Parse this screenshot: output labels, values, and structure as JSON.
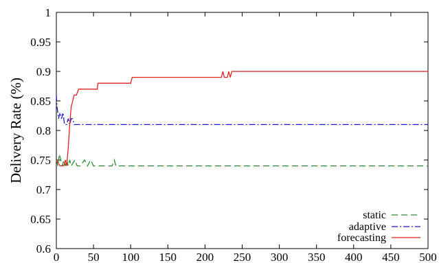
{
  "chart_data": {
    "type": "line",
    "title": "",
    "xlabel": "",
    "ylabel": "Delivery Rate (%)",
    "xlim": [
      0,
      500
    ],
    "ylim": [
      0.6,
      1.0
    ],
    "x_ticks": [
      0,
      50,
      100,
      150,
      200,
      250,
      300,
      350,
      400,
      450,
      500
    ],
    "y_ticks": [
      0.6,
      0.65,
      0.7,
      0.75,
      0.8,
      0.85,
      0.9,
      0.95,
      1.0
    ],
    "y_tick_labels": [
      "0.6",
      "0.65",
      "0.7",
      "0.75",
      "0.8",
      "0.85",
      "0.9",
      "0.95",
      "1"
    ],
    "grid": false,
    "legend_position": "bottom-right",
    "series": [
      {
        "name": "static",
        "color": "#2e8b2e",
        "dash": "dashed",
        "points": [
          [
            0,
            0.75
          ],
          [
            2,
            0.74
          ],
          [
            4,
            0.76
          ],
          [
            6,
            0.75
          ],
          [
            8,
            0.74
          ],
          [
            10,
            0.75
          ],
          [
            12,
            0.74
          ],
          [
            14,
            0.75
          ],
          [
            16,
            0.74
          ],
          [
            18,
            0.75
          ],
          [
            20,
            0.74
          ],
          [
            25,
            0.75
          ],
          [
            28,
            0.74
          ],
          [
            32,
            0.74
          ],
          [
            38,
            0.75
          ],
          [
            42,
            0.74
          ],
          [
            46,
            0.75
          ],
          [
            50,
            0.74
          ],
          [
            60,
            0.74
          ],
          [
            75,
            0.74
          ],
          [
            78,
            0.75
          ],
          [
            80,
            0.74
          ],
          [
            100,
            0.74
          ],
          [
            500,
            0.74
          ]
        ]
      },
      {
        "name": "adaptive",
        "color": "#1a1acc",
        "dash": "dash-dot",
        "points": [
          [
            0,
            0.86
          ],
          [
            1,
            0.84
          ],
          [
            3,
            0.82
          ],
          [
            5,
            0.83
          ],
          [
            7,
            0.82
          ],
          [
            9,
            0.83
          ],
          [
            11,
            0.81
          ],
          [
            14,
            0.81
          ],
          [
            16,
            0.82
          ],
          [
            18,
            0.81
          ],
          [
            20,
            0.82
          ],
          [
            22,
            0.82
          ],
          [
            24,
            0.81
          ],
          [
            30,
            0.81
          ],
          [
            500,
            0.81
          ]
        ]
      },
      {
        "name": "forecasting",
        "color": "#dd2222",
        "dash": "solid",
        "points": [
          [
            0,
            0.75
          ],
          [
            5,
            0.74
          ],
          [
            10,
            0.74
          ],
          [
            12,
            0.75
          ],
          [
            14,
            0.74
          ],
          [
            16,
            0.77
          ],
          [
            18,
            0.81
          ],
          [
            20,
            0.84
          ],
          [
            22,
            0.85
          ],
          [
            24,
            0.86
          ],
          [
            27,
            0.86
          ],
          [
            30,
            0.87
          ],
          [
            55,
            0.87
          ],
          [
            56,
            0.88
          ],
          [
            100,
            0.88
          ],
          [
            102,
            0.89
          ],
          [
            222,
            0.89
          ],
          [
            224,
            0.9
          ],
          [
            226,
            0.89
          ],
          [
            230,
            0.89
          ],
          [
            232,
            0.9
          ],
          [
            234,
            0.89
          ],
          [
            236,
            0.9
          ],
          [
            240,
            0.9
          ],
          [
            500,
            0.9
          ]
        ]
      }
    ]
  }
}
